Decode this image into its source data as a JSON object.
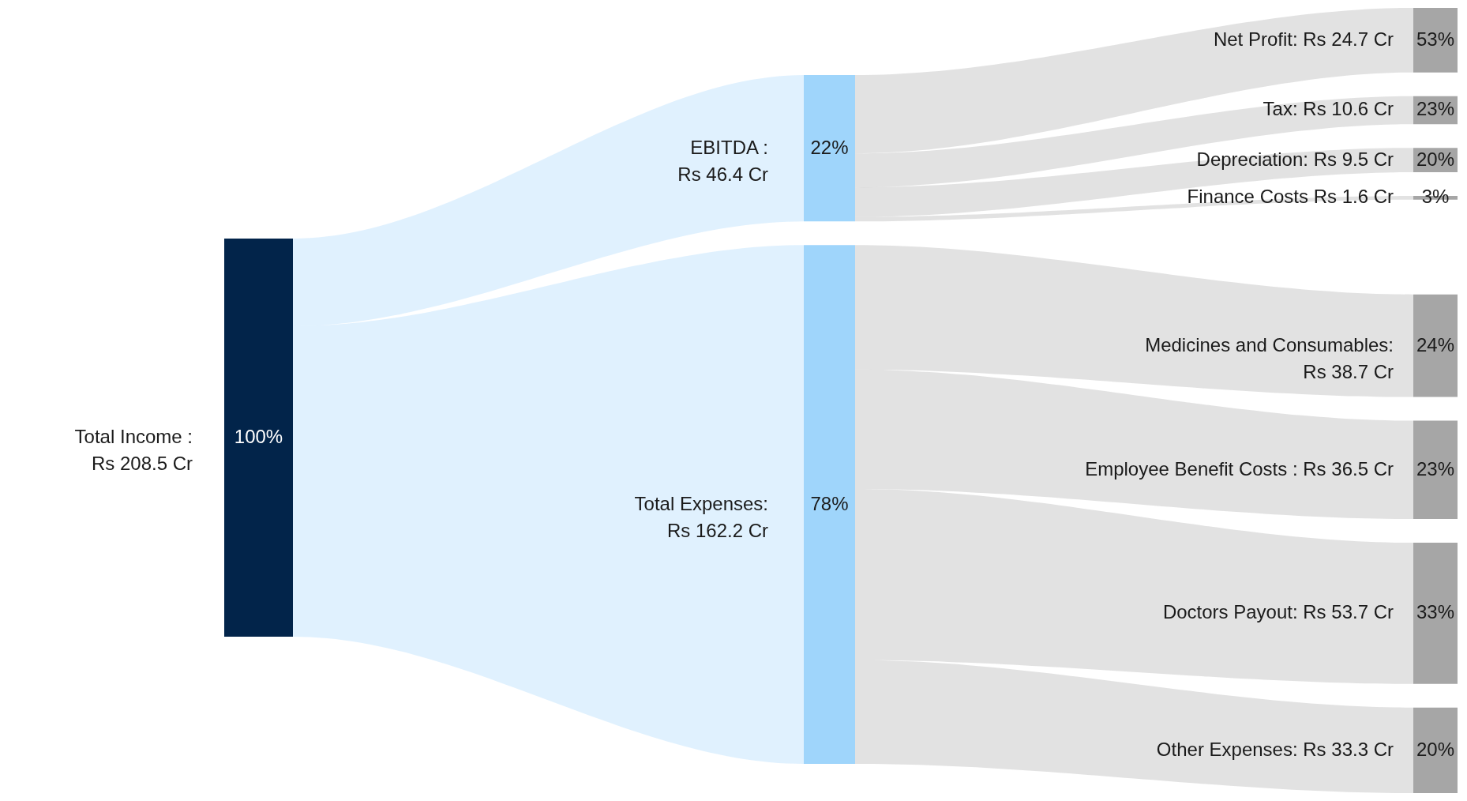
{
  "chart_data": {
    "type": "other",
    "categories": [
      "Total Income :\nRs 208.5 Cr",
      "EBITDA :\nRs 46.4 Cr",
      "Total Expenses:\nRs 162.2 Cr",
      "Net Profit: Rs 24.7 Cr",
      "Tax: Rs 10.6 Cr",
      "Depreciation: Rs 9.5 Cr",
      "Finance Costs Rs 1.6 Cr",
      "Medicines and Consumables:\nRs 38.7 Cr",
      "Employee Benefit Costs : Rs 36.5 Cr",
      "Doctors Payout: Rs 53.7 Cr",
      "Other Expenses: Rs 33.3 Cr"
    ],
    "series": [
      {
        "color": "#02244a",
        "values": [
          100,
          null,
          null,
          null,
          null,
          null,
          null,
          null,
          null,
          null,
          null
        ],
        "value_labels": [
          "100%",
          null,
          null,
          null,
          null,
          null,
          null,
          null,
          null,
          null,
          null
        ]
      },
      {
        "color": "#9fd5fb",
        "values": [
          null,
          22,
          78,
          null,
          null,
          null,
          null,
          null,
          null,
          null,
          null
        ],
        "value_labels": [
          null,
          "22%",
          "78%",
          null,
          null,
          null,
          null,
          null,
          null,
          null,
          null
        ]
      },
      {
        "color": "#a6a6a6",
        "values": [
          null,
          null,
          null,
          53,
          23,
          20,
          3,
          null,
          null,
          null,
          null
        ],
        "value_labels": [
          null,
          null,
          null,
          "53%",
          "23%",
          "20%",
          "3%",
          null,
          null,
          null,
          null
        ]
      },
      {
        "color": "#a6a6a6",
        "values": [
          null,
          null,
          null,
          null,
          null,
          null,
          null,
          24,
          23,
          33,
          20
        ],
        "value_labels": [
          null,
          null,
          null,
          null,
          null,
          null,
          null,
          "24%",
          "23%",
          "33%",
          "20%"
        ]
      }
    ]
  }
}
